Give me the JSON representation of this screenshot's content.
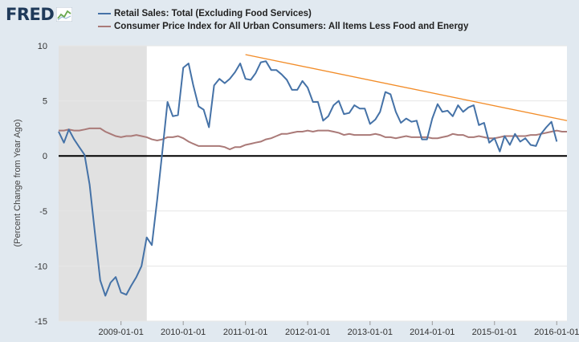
{
  "logo": {
    "text": "FRED",
    "icon": "fred-chart-icon"
  },
  "colors": {
    "background": "#e1e9f0",
    "plot_bg": "#ffffff",
    "recession": "#e1e1e1",
    "retail": "#4572a7",
    "cpi": "#aa7a78",
    "trend": "#f28c28",
    "zero_line": "#000000"
  },
  "chart_data": {
    "type": "line",
    "title": "",
    "xlabel": "",
    "ylabel": "(Percent Change from Year Ago)",
    "ylim": [
      -15,
      10
    ],
    "yticks": [
      -15,
      -10,
      -5,
      0,
      5,
      10
    ],
    "xlim": [
      "2008-01-01",
      "2016-03-01"
    ],
    "xticks": [
      "2009-01-01",
      "2010-01-01",
      "2011-01-01",
      "2012-01-01",
      "2013-01-01",
      "2014-01-01",
      "2015-01-01",
      "2016-01-01"
    ],
    "recession": {
      "start": "2008-01-01",
      "end": "2009-06-01"
    },
    "grid": "horizontal",
    "legend": "top-left",
    "series": [
      {
        "name": "Retail Sales: Total (Excluding Food Services)",
        "color": "#4572a7",
        "start": "2008-01-01",
        "step": "monthly",
        "values": [
          2.2,
          1.2,
          2.4,
          1.5,
          0.8,
          0.1,
          -2.6,
          -7.0,
          -11.3,
          -12.7,
          -11.5,
          -11.0,
          -12.4,
          -12.6,
          -11.8,
          -11.0,
          -10.0,
          -7.4,
          -8.1,
          -4.0,
          0.5,
          4.9,
          3.6,
          3.7,
          8.0,
          8.4,
          6.4,
          4.5,
          4.2,
          2.6,
          6.4,
          7.0,
          6.6,
          7.0,
          7.6,
          8.4,
          7.0,
          6.9,
          7.5,
          8.5,
          8.6,
          7.8,
          7.8,
          7.4,
          6.9,
          6.0,
          6.0,
          6.8,
          6.2,
          4.9,
          4.9,
          3.2,
          3.6,
          4.6,
          5.0,
          3.8,
          3.9,
          4.6,
          4.3,
          4.3,
          2.9,
          3.3,
          4.0,
          5.8,
          5.6,
          4.0,
          3.0,
          3.4,
          3.1,
          3.2,
          1.5,
          1.5,
          3.4,
          4.7,
          4.0,
          4.1,
          3.6,
          4.6,
          4.0,
          4.4,
          4.6,
          2.8,
          3.0,
          1.2,
          1.6,
          0.4,
          1.8,
          1.0,
          2.0,
          1.3,
          1.6,
          1.0,
          0.9,
          2.0,
          2.6,
          3.1,
          1.3
        ]
      },
      {
        "name": "Consumer Price Index for All Urban Consumers: All Items Less Food and Energy",
        "color": "#aa7a78",
        "start": "2008-01-01",
        "step": "monthly",
        "values": [
          2.3,
          2.3,
          2.4,
          2.3,
          2.3,
          2.4,
          2.5,
          2.5,
          2.5,
          2.2,
          2.0,
          1.8,
          1.7,
          1.8,
          1.8,
          1.9,
          1.8,
          1.7,
          1.5,
          1.4,
          1.5,
          1.7,
          1.7,
          1.8,
          1.6,
          1.3,
          1.1,
          0.9,
          0.9,
          0.9,
          0.9,
          0.9,
          0.8,
          0.6,
          0.8,
          0.8,
          1.0,
          1.1,
          1.2,
          1.3,
          1.5,
          1.6,
          1.8,
          2.0,
          2.0,
          2.1,
          2.2,
          2.2,
          2.3,
          2.2,
          2.3,
          2.3,
          2.3,
          2.2,
          2.1,
          1.9,
          2.0,
          1.9,
          1.9,
          1.9,
          1.9,
          2.0,
          1.9,
          1.7,
          1.7,
          1.6,
          1.7,
          1.8,
          1.7,
          1.7,
          1.7,
          1.7,
          1.6,
          1.6,
          1.7,
          1.8,
          2.0,
          1.9,
          1.9,
          1.7,
          1.7,
          1.8,
          1.7,
          1.6,
          1.6,
          1.7,
          1.8,
          1.8,
          1.8,
          1.8,
          1.8,
          1.9,
          1.9,
          2.0,
          2.1,
          2.2,
          2.3,
          2.2,
          2.2
        ]
      }
    ],
    "annotations": [
      {
        "type": "trendline",
        "from": [
          "2011-01-01",
          9.2
        ],
        "to": [
          "2016-03-01",
          3.2
        ]
      }
    ]
  }
}
